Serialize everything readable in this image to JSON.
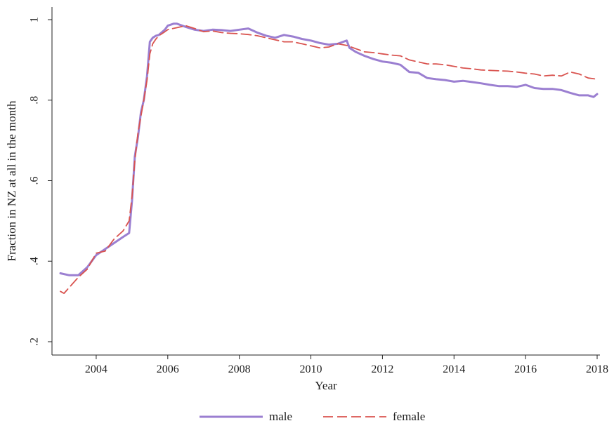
{
  "chart_data": {
    "type": "line",
    "xlabel": "Year",
    "ylabel": "Fraction in NZ at all in the month",
    "xlim": [
      2003.0,
      2018.0
    ],
    "ylim": [
      0.2,
      1.0
    ],
    "x_ticks": [
      2004,
      2006,
      2008,
      2010,
      2012,
      2014,
      2016,
      2018
    ],
    "x_tick_labels": [
      "2004",
      "2006",
      "2008",
      "2010",
      "2012",
      "2014",
      "2016",
      "2018"
    ],
    "y_ticks": [
      0.2,
      0.4,
      0.6,
      0.8,
      1.0
    ],
    "y_tick_labels": [
      ".2",
      ".4",
      ".6",
      ".8",
      "1"
    ],
    "grid": false,
    "legend_position": "bottom",
    "series": [
      {
        "name": "male",
        "color": "#9b7fd1",
        "line_style": "solid",
        "x": [
          2003.0,
          2003.25,
          2003.5,
          2003.75,
          2004.0,
          2004.25,
          2004.5,
          2004.75,
          2004.92,
          2005.0,
          2005.08,
          2005.17,
          2005.25,
          2005.33,
          2005.42,
          2005.5,
          2005.58,
          2005.67,
          2005.75,
          2005.92,
          2006.0,
          2006.17,
          2006.25,
          2006.5,
          2006.75,
          2007.0,
          2007.25,
          2007.5,
          2007.75,
          2008.0,
          2008.25,
          2008.5,
          2008.75,
          2009.0,
          2009.25,
          2009.5,
          2009.75,
          2010.0,
          2010.25,
          2010.5,
          2010.75,
          2011.0,
          2011.08,
          2011.25,
          2011.5,
          2011.75,
          2012.0,
          2012.25,
          2012.5,
          2012.75,
          2013.0,
          2013.25,
          2013.5,
          2013.75,
          2014.0,
          2014.25,
          2014.5,
          2014.75,
          2015.0,
          2015.25,
          2015.5,
          2015.75,
          2016.0,
          2016.25,
          2016.5,
          2016.75,
          2017.0,
          2017.25,
          2017.5,
          2017.75,
          2017.9,
          2018.0
        ],
        "values": [
          0.37,
          0.365,
          0.365,
          0.385,
          0.415,
          0.43,
          0.445,
          0.46,
          0.47,
          0.55,
          0.66,
          0.71,
          0.77,
          0.8,
          0.86,
          0.945,
          0.955,
          0.96,
          0.962,
          0.975,
          0.985,
          0.99,
          0.99,
          0.982,
          0.975,
          0.972,
          0.975,
          0.974,
          0.972,
          0.975,
          0.978,
          0.968,
          0.96,
          0.955,
          0.962,
          0.958,
          0.952,
          0.948,
          0.942,
          0.938,
          0.94,
          0.948,
          0.93,
          0.92,
          0.91,
          0.902,
          0.896,
          0.893,
          0.888,
          0.87,
          0.868,
          0.855,
          0.852,
          0.85,
          0.846,
          0.848,
          0.845,
          0.842,
          0.838,
          0.835,
          0.835,
          0.833,
          0.838,
          0.83,
          0.828,
          0.828,
          0.825,
          0.818,
          0.812,
          0.812,
          0.808,
          0.815
        ]
      },
      {
        "name": "female",
        "color": "#d9534f",
        "line_style": "dashed",
        "x": [
          2003.0,
          2003.1,
          2003.25,
          2003.5,
          2003.75,
          2004.0,
          2004.25,
          2004.5,
          2004.75,
          2004.92,
          2005.0,
          2005.08,
          2005.17,
          2005.25,
          2005.33,
          2005.42,
          2005.5,
          2005.58,
          2005.67,
          2005.75,
          2005.92,
          2006.0,
          2006.25,
          2006.5,
          2006.75,
          2007.0,
          2007.25,
          2007.5,
          2007.75,
          2008.0,
          2008.25,
          2008.5,
          2008.75,
          2009.0,
          2009.25,
          2009.5,
          2009.75,
          2010.0,
          2010.25,
          2010.5,
          2010.75,
          2011.0,
          2011.25,
          2011.5,
          2011.75,
          2012.0,
          2012.25,
          2012.5,
          2012.75,
          2013.0,
          2013.25,
          2013.5,
          2013.75,
          2014.0,
          2014.25,
          2014.5,
          2014.75,
          2015.0,
          2015.25,
          2015.5,
          2015.75,
          2016.0,
          2016.25,
          2016.5,
          2016.75,
          2017.0,
          2017.25,
          2017.5,
          2017.75,
          2018.0
        ],
        "values": [
          0.325,
          0.32,
          0.335,
          0.36,
          0.38,
          0.42,
          0.425,
          0.455,
          0.475,
          0.5,
          0.56,
          0.65,
          0.72,
          0.76,
          0.8,
          0.85,
          0.915,
          0.94,
          0.952,
          0.96,
          0.97,
          0.975,
          0.98,
          0.985,
          0.978,
          0.97,
          0.972,
          0.968,
          0.966,
          0.965,
          0.963,
          0.96,
          0.955,
          0.95,
          0.945,
          0.945,
          0.94,
          0.935,
          0.93,
          0.932,
          0.94,
          0.936,
          0.928,
          0.92,
          0.918,
          0.915,
          0.912,
          0.91,
          0.9,
          0.895,
          0.89,
          0.89,
          0.888,
          0.884,
          0.88,
          0.878,
          0.875,
          0.874,
          0.873,
          0.872,
          0.87,
          0.867,
          0.865,
          0.86,
          0.862,
          0.86,
          0.87,
          0.865,
          0.855,
          0.852
        ]
      }
    ]
  }
}
